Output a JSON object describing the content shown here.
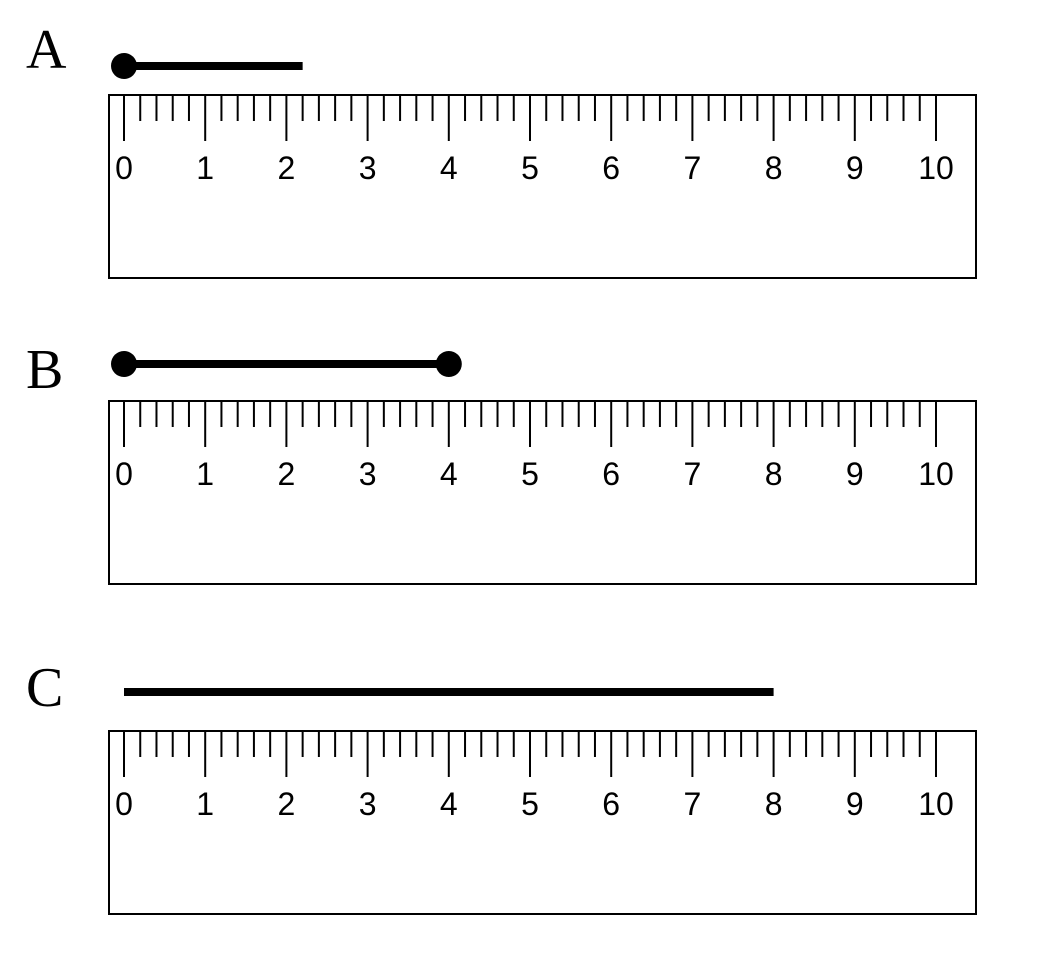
{
  "panels": [
    {
      "label": "A",
      "ruler": {
        "min": 0,
        "max": 10,
        "minor_step": 0.2,
        "major_labels": [
          "0",
          "1",
          "2",
          "3",
          "4",
          "5",
          "6",
          "7",
          "8",
          "9",
          "10"
        ]
      },
      "segment": {
        "start": 0,
        "end": 2.2,
        "start_dot": true,
        "end_dot": false
      }
    },
    {
      "label": "B",
      "ruler": {
        "min": 0,
        "max": 10,
        "minor_step": 0.2,
        "major_labels": [
          "0",
          "1",
          "2",
          "3",
          "4",
          "5",
          "6",
          "7",
          "8",
          "9",
          "10"
        ]
      },
      "segment": {
        "start": 0,
        "end": 4.0,
        "start_dot": true,
        "end_dot": true
      }
    },
    {
      "label": "C",
      "ruler": {
        "min": 0,
        "max": 10,
        "minor_step": 0.2,
        "major_labels": [
          "0",
          "1",
          "2",
          "3",
          "4",
          "5",
          "6",
          "7",
          "8",
          "9",
          "10"
        ]
      },
      "segment": {
        "start": 0,
        "end": 8.0,
        "start_dot": false,
        "end_dot": false
      }
    }
  ],
  "colors": {
    "ink": "#000000",
    "background": "#ffffff"
  }
}
